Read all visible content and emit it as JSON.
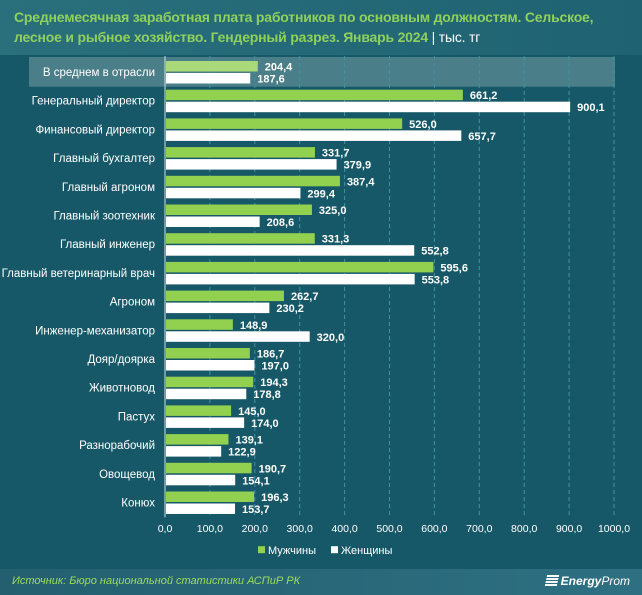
{
  "header": {
    "title": "Среднемесячная заработная плата работников по основным должностям. Сельское, лесное и рыбное хозяйство. Гендерный разрез. Январь 2024",
    "separator": "|",
    "unit": "тыс. тг"
  },
  "footer": {
    "source": "Источник: Бюро национальной статистики АСПиР РК",
    "logo_bold": "Energy",
    "logo_rest": "Prom"
  },
  "colors": {
    "background": "#175868",
    "men": "#92d050",
    "men_highlight": "#a9d979",
    "women": "#ffffff",
    "title": "#8fd15b",
    "highlight_row": "#4a7f89"
  },
  "chart_data": {
    "type": "bar",
    "orientation": "horizontal",
    "title": "Среднемесячная заработная плата работников по основным должностям. Сельское, лесное и рыбное хозяйство. Гендерный разрез. Январь 2024",
    "unit": "тыс. тг",
    "xlim": [
      0,
      1000
    ],
    "xticks": [
      "0,0",
      "100,0",
      "200,0",
      "300,0",
      "400,0",
      "500,0",
      "600,0",
      "700,0",
      "800,0",
      "900,0",
      "1000,0"
    ],
    "grid": "vertical dashed",
    "legend": "bottom-center",
    "highlighted_category": "В среднем в отрасли",
    "categories": [
      "В среднем в отрасли",
      "Генеральный директор",
      "Финансовый директор",
      "Главный бухгалтер",
      "Главный агроном",
      "Главный зоотехник",
      "Главный инженер",
      "Главный ветеринарный врач",
      "Агроном",
      "Инженер-механизатор",
      "Дояр/доярка",
      "Животновод",
      "Пастух",
      "Разнорабочий",
      "Овощевод",
      "Конюх"
    ],
    "series": [
      {
        "name": "Мужчины",
        "values": [
          204.4,
          661.2,
          526.0,
          331.7,
          387.4,
          325.0,
          331.3,
          595.6,
          262.7,
          148.9,
          186.7,
          194.3,
          145.0,
          139.1,
          190.7,
          196.3
        ]
      },
      {
        "name": "Женщины",
        "values": [
          187.6,
          900.1,
          657.7,
          379.9,
          299.4,
          208.6,
          552.8,
          553.8,
          230.2,
          320.0,
          197.0,
          178.8,
          174.0,
          122.9,
          154.1,
          153.7
        ]
      }
    ],
    "labels": {
      "Мужчины": [
        "204,4",
        "661,2",
        "526,0",
        "331,7",
        "387,4",
        "325,0",
        "331,3",
        "595,6",
        "262,7",
        "148,9",
        "186,7",
        "194,3",
        "145,0",
        "139,1",
        "190,7",
        "196,3"
      ],
      "Женщины": [
        "187,6",
        "900,1",
        "657,7",
        "379,9",
        "299,4",
        "208,6",
        "552,8",
        "553,8",
        "230,2",
        "320,0",
        "197,0",
        "178,8",
        "174,0",
        "122,9",
        "154,1",
        "153,7"
      ]
    }
  }
}
